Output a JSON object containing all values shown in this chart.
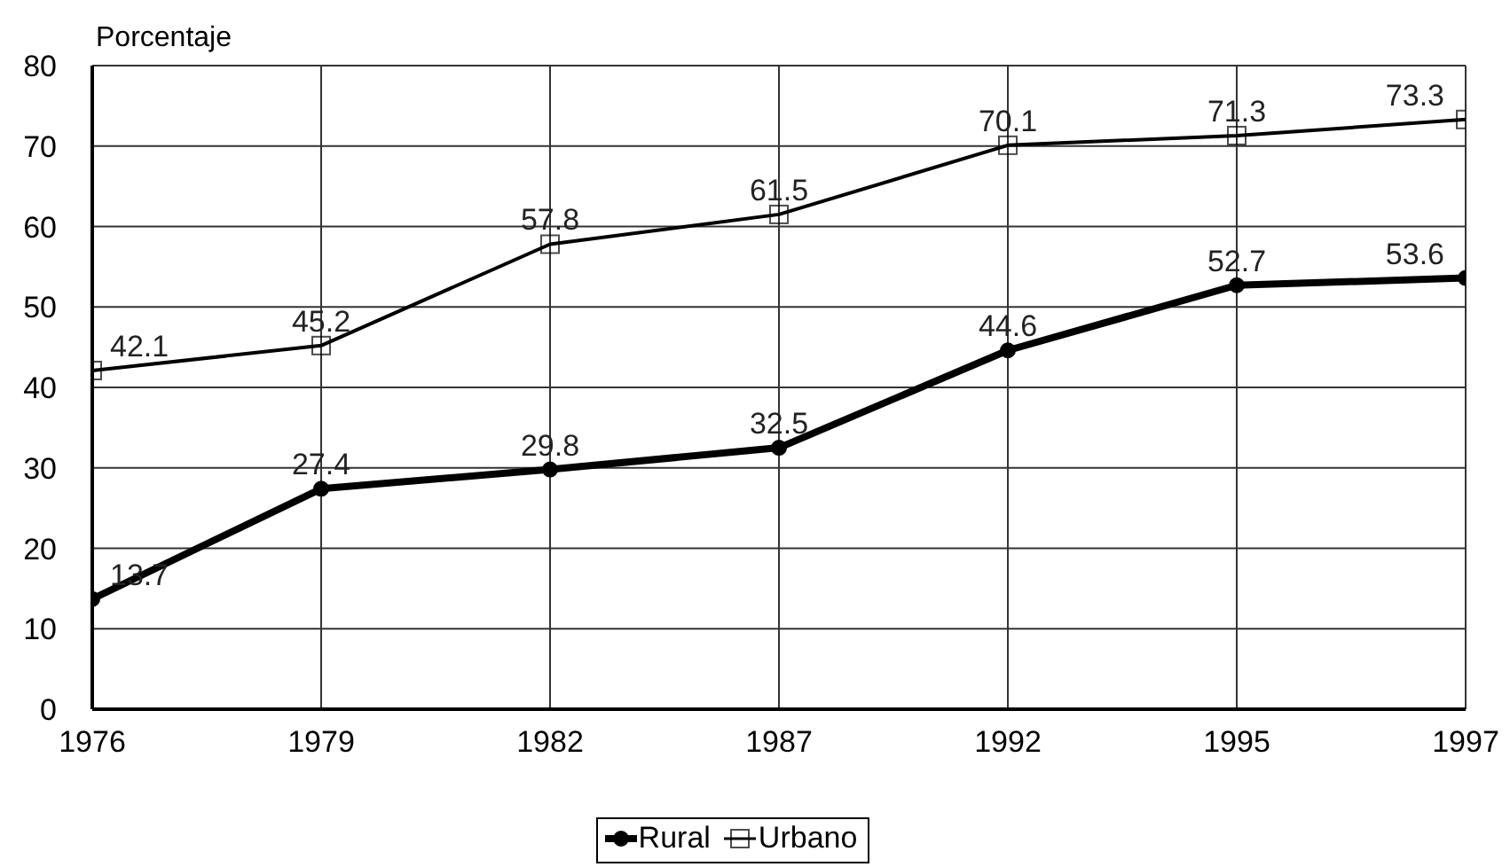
{
  "chart_data": {
    "type": "line",
    "ylabel": "Porcentaje",
    "categories": [
      "1976",
      "1979",
      "1982",
      "1987",
      "1992",
      "1995",
      "1997"
    ],
    "series": [
      {
        "name": "Rural",
        "color": "#000000",
        "marker": "circle",
        "values": [
          13.7,
          27.4,
          29.8,
          32.5,
          44.6,
          52.7,
          53.6
        ]
      },
      {
        "name": "Urbano",
        "color": "#000000",
        "marker": "square",
        "values": [
          42.1,
          45.2,
          57.8,
          61.5,
          70.1,
          71.3,
          73.3
        ]
      }
    ],
    "ylim": [
      0,
      80
    ],
    "yticks": [
      0,
      10,
      20,
      30,
      40,
      50,
      60,
      70,
      80
    ],
    "grid": true,
    "legend": "bottom",
    "data_labels": true
  }
}
